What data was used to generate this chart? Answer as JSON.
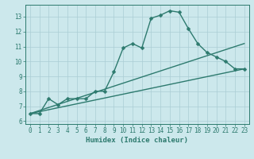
{
  "xlabel": "Humidex (Indice chaleur)",
  "bg_color": "#cce8ec",
  "grid_color": "#aacdd4",
  "line_color": "#2d7a6e",
  "xlim": [
    -0.5,
    23.5
  ],
  "ylim": [
    5.8,
    13.8
  ],
  "x_ticks": [
    0,
    1,
    2,
    3,
    4,
    5,
    6,
    7,
    8,
    9,
    10,
    11,
    12,
    13,
    14,
    15,
    16,
    17,
    18,
    19,
    20,
    21,
    22,
    23
  ],
  "y_ticks": [
    6,
    7,
    8,
    9,
    10,
    11,
    12,
    13
  ],
  "curve1_x": [
    0,
    1,
    2,
    3,
    4,
    5,
    6,
    7,
    8,
    9,
    10,
    11,
    12,
    13,
    14,
    15,
    16,
    17,
    18,
    19,
    20,
    21,
    22,
    23
  ],
  "curve1_y": [
    6.5,
    6.5,
    7.5,
    7.1,
    7.5,
    7.5,
    7.5,
    8.0,
    8.0,
    9.3,
    10.9,
    11.2,
    10.9,
    12.9,
    13.1,
    13.4,
    13.3,
    12.2,
    11.2,
    10.6,
    10.3,
    10.0,
    9.5,
    9.5
  ],
  "curve2_x": [
    0,
    23
  ],
  "curve2_y": [
    6.5,
    9.5
  ],
  "curve3_x": [
    0,
    23
  ],
  "curve3_y": [
    6.5,
    11.2
  ],
  "marker_size": 2.5,
  "linewidth": 1.0,
  "tick_fontsize": 5.5,
  "xlabel_fontsize": 6.5
}
